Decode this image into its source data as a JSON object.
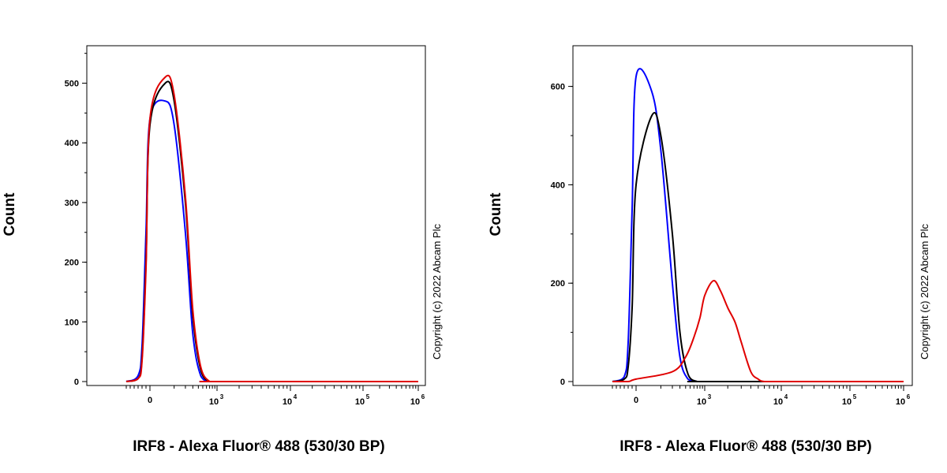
{
  "charts": [
    {
      "id": "left",
      "ylabel": "Count",
      "xlabel": "IRF8 - Alexa Fluor® 488 (530/30 BP)",
      "copyright": "Copyright (c) 2022 Abcam Plc",
      "y_ticks": [
        "0",
        "100",
        "200",
        "300",
        "400",
        "500"
      ],
      "x_ticks": [
        {
          "base": "0",
          "exp": ""
        },
        {
          "base": "10",
          "exp": "3"
        },
        {
          "base": "10",
          "exp": "4"
        },
        {
          "base": "10",
          "exp": "5"
        },
        {
          "base": "10",
          "exp": "6"
        }
      ]
    },
    {
      "id": "right",
      "ylabel": "Count",
      "xlabel": "IRF8 - Alexa Fluor® 488 (530/30 BP)",
      "copyright": "Copyright (c) 2022 Abcam Plc",
      "y_ticks": [
        "0",
        "200",
        "400",
        "600"
      ],
      "x_ticks": [
        {
          "base": "0",
          "exp": ""
        },
        {
          "base": "10",
          "exp": "3"
        },
        {
          "base": "10",
          "exp": "4"
        },
        {
          "base": "10",
          "exp": "5"
        },
        {
          "base": "10",
          "exp": "6"
        }
      ]
    }
  ],
  "chart_data": [
    {
      "type": "line",
      "xscale": "biexponential",
      "x_tick_values": [
        0,
        1000,
        10000,
        100000,
        1000000
      ],
      "ylim": [
        0,
        560
      ],
      "y_tick_values": [
        0,
        100,
        200,
        300,
        400,
        500
      ],
      "grid": false,
      "series": [
        {
          "color": "#0000ff",
          "x": [
            -600,
            -300,
            -200,
            -100,
            0,
            50,
            100,
            200,
            300,
            450,
            700,
            1000,
            1000000
          ],
          "y": [
            0,
            10,
            60,
            250,
            440,
            470,
            430,
            250,
            80,
            10,
            0,
            0,
            0
          ]
        },
        {
          "color": "#000000",
          "x": [
            -600,
            -300,
            -200,
            -100,
            0,
            50,
            100,
            200,
            300,
            450,
            700,
            1000,
            1000000
          ],
          "y": [
            0,
            5,
            40,
            200,
            430,
            500,
            470,
            300,
            110,
            20,
            0,
            0,
            0
          ]
        },
        {
          "color": "#e00000",
          "x": [
            -600,
            -300,
            -200,
            -100,
            0,
            50,
            100,
            200,
            300,
            450,
            700,
            1000,
            1000000
          ],
          "y": [
            0,
            5,
            35,
            190,
            440,
            510,
            480,
            310,
            120,
            25,
            0,
            0,
            0
          ]
        }
      ]
    },
    {
      "type": "line",
      "xscale": "biexponential",
      "x_tick_values": [
        0,
        1000,
        10000,
        100000,
        1000000
      ],
      "ylim": [
        0,
        690
      ],
      "y_tick_values": [
        0,
        200,
        400,
        600
      ],
      "grid": false,
      "series": [
        {
          "color": "#0000ff",
          "x": [
            -600,
            -300,
            -200,
            -100,
            0,
            50,
            100,
            200,
            300,
            450,
            700,
            1000,
            1000000
          ],
          "y": [
            0,
            10,
            80,
            350,
            620,
            590,
            470,
            200,
            50,
            5,
            0,
            0,
            0
          ]
        },
        {
          "color": "#000000",
          "x": [
            -600,
            -300,
            -200,
            -100,
            0,
            50,
            100,
            200,
            300,
            450,
            700,
            1000,
            1000000
          ],
          "y": [
            0,
            5,
            30,
            150,
            400,
            540,
            500,
            300,
            100,
            15,
            0,
            0,
            0
          ]
        },
        {
          "color": "#e00000",
          "x": [
            -600,
            -200,
            0,
            200,
            400,
            600,
            800,
            1000,
            1300,
            1600,
            2000,
            2500,
            3000,
            4000,
            5000,
            6000,
            10000,
            1000000
          ],
          "y": [
            0,
            0,
            5,
            20,
            50,
            90,
            130,
            175,
            205,
            185,
            150,
            120,
            80,
            20,
            5,
            0,
            0,
            0
          ]
        }
      ]
    }
  ]
}
